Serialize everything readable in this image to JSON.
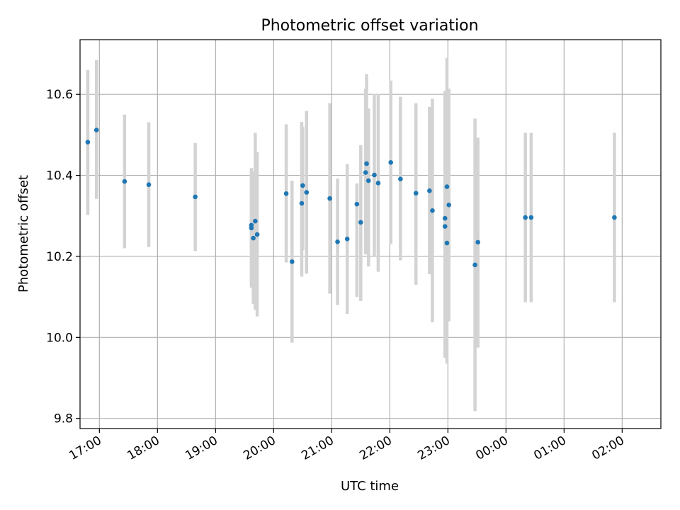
{
  "chart_data": {
    "type": "scatter",
    "title": "Photometric offset variation",
    "xlabel": "UTC time",
    "ylabel": "Photometric offset",
    "x_unit": "UTC time of day (crosses midnight)",
    "xlim": [
      "16:40",
      "02:40"
    ],
    "ylim": [
      9.775,
      10.735
    ],
    "grid": true,
    "x_ticks": [
      "17:00",
      "18:00",
      "19:00",
      "20:00",
      "21:00",
      "22:00",
      "23:00",
      "00:00",
      "01:00",
      "02:00"
    ],
    "y_ticks": [
      9.8,
      10.0,
      10.2,
      10.4,
      10.6
    ],
    "y_tick_labels": [
      "9.8",
      "10.0",
      "10.2",
      "10.4",
      "10.6"
    ],
    "colors": {
      "points": "#1f77b4",
      "errorbars": "#d3d3d3",
      "grid": "#b0b0b0"
    },
    "points": [
      {
        "t": "16:48",
        "y": 10.482,
        "lo": 10.302,
        "hi": 10.66
      },
      {
        "t": "16:57",
        "y": 10.512,
        "lo": 10.342,
        "hi": 10.685
      },
      {
        "t": "17:26",
        "y": 10.385,
        "lo": 10.22,
        "hi": 10.55
      },
      {
        "t": "17:51",
        "y": 10.377,
        "lo": 10.223,
        "hi": 10.531
      },
      {
        "t": "18:39",
        "y": 10.347,
        "lo": 10.213,
        "hi": 10.48
      },
      {
        "t": "19:37",
        "y": 10.277,
        "lo": 10.137,
        "hi": 10.418
      },
      {
        "t": "19:37",
        "y": 10.27,
        "lo": 10.123,
        "hi": 10.4
      },
      {
        "t": "19:39",
        "y": 10.245,
        "lo": 10.083,
        "hi": 10.41
      },
      {
        "t": "19:41",
        "y": 10.287,
        "lo": 10.068,
        "hi": 10.505
      },
      {
        "t": "19:43",
        "y": 10.254,
        "lo": 10.052,
        "hi": 10.457
      },
      {
        "t": "20:13",
        "y": 10.355,
        "lo": 10.185,
        "hi": 10.526
      },
      {
        "t": "20:19",
        "y": 10.187,
        "lo": 9.987,
        "hi": 10.387
      },
      {
        "t": "20:29",
        "y": 10.331,
        "lo": 10.15,
        "hi": 10.532
      },
      {
        "t": "20:30",
        "y": 10.375,
        "lo": 10.215,
        "hi": 10.52
      },
      {
        "t": "20:34",
        "y": 10.358,
        "lo": 10.157,
        "hi": 10.559
      },
      {
        "t": "20:58",
        "y": 10.343,
        "lo": 10.108,
        "hi": 10.578
      },
      {
        "t": "21:06",
        "y": 10.236,
        "lo": 10.08,
        "hi": 10.392
      },
      {
        "t": "21:16",
        "y": 10.243,
        "lo": 10.058,
        "hi": 10.428
      },
      {
        "t": "21:26",
        "y": 10.329,
        "lo": 10.1,
        "hi": 10.38
      },
      {
        "t": "21:30",
        "y": 10.284,
        "lo": 10.09,
        "hi": 10.475
      },
      {
        "t": "21:35",
        "y": 10.407,
        "lo": 10.205,
        "hi": 10.614
      },
      {
        "t": "21:36",
        "y": 10.429,
        "lo": 10.205,
        "hi": 10.65
      },
      {
        "t": "21:38",
        "y": 10.387,
        "lo": 10.175,
        "hi": 10.565
      },
      {
        "t": "21:44",
        "y": 10.401,
        "lo": 10.2,
        "hi": 10.601
      },
      {
        "t": "21:48",
        "y": 10.381,
        "lo": 10.162,
        "hi": 10.601
      },
      {
        "t": "22:01",
        "y": 10.432,
        "lo": 10.23,
        "hi": 10.634
      },
      {
        "t": "22:11",
        "y": 10.391,
        "lo": 10.19,
        "hi": 10.594
      },
      {
        "t": "22:27",
        "y": 10.356,
        "lo": 10.13,
        "hi": 10.578
      },
      {
        "t": "22:41",
        "y": 10.362,
        "lo": 10.156,
        "hi": 10.569
      },
      {
        "t": "22:44",
        "y": 10.313,
        "lo": 10.037,
        "hi": 10.589
      },
      {
        "t": "22:57",
        "y": 10.294,
        "lo": 9.95,
        "hi": 10.608
      },
      {
        "t": "22:57",
        "y": 10.274,
        "lo": 9.95,
        "hi": 10.6
      },
      {
        "t": "22:59",
        "y": 10.372,
        "lo": 10.05,
        "hi": 10.69
      },
      {
        "t": "22:59",
        "y": 10.233,
        "lo": 9.935,
        "hi": 10.53
      },
      {
        "t": "23:01",
        "y": 10.327,
        "lo": 10.04,
        "hi": 10.614
      },
      {
        "t": "23:28",
        "y": 10.179,
        "lo": 9.818,
        "hi": 10.54
      },
      {
        "t": "23:31",
        "y": 10.235,
        "lo": 9.975,
        "hi": 10.493
      },
      {
        "t": "00:20",
        "y": 10.296,
        "lo": 10.087,
        "hi": 10.505
      },
      {
        "t": "00:26",
        "y": 10.296,
        "lo": 10.087,
        "hi": 10.505
      },
      {
        "t": "01:52",
        "y": 10.296,
        "lo": 10.087,
        "hi": 10.505
      }
    ]
  }
}
